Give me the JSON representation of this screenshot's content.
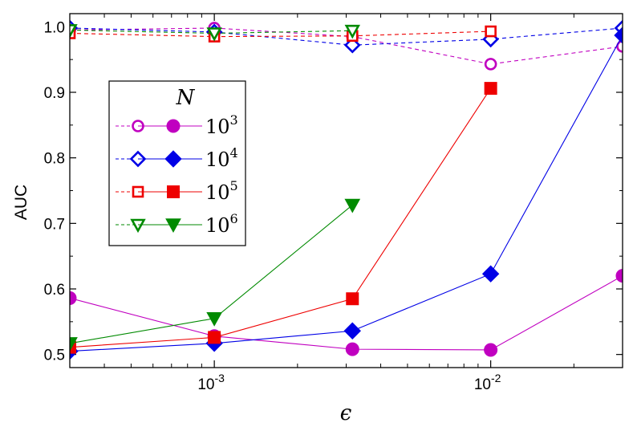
{
  "chart_data": {
    "type": "line",
    "xlabel": "ϵ",
    "ylabel": "AUC",
    "xscale": "log",
    "xlim": [
      0.0003,
      0.03
    ],
    "ylim": [
      0.48,
      1.02
    ],
    "x": [
      0.0003,
      0.001,
      0.00316,
      0.01,
      0.03
    ],
    "x_ticks": [
      {
        "value": 0.001,
        "base": "10",
        "exp": "-3"
      },
      {
        "value": 0.01,
        "base": "10",
        "exp": "-2"
      }
    ],
    "y_ticks": [
      {
        "value": 0.5,
        "label": "0.5"
      },
      {
        "value": 0.6,
        "label": "0.6"
      },
      {
        "value": 0.7,
        "label": "0.7"
      },
      {
        "value": 0.8,
        "label": "0.8"
      },
      {
        "value": 0.9,
        "label": "0.9"
      },
      {
        "value": 1.0,
        "label": "1.0"
      }
    ],
    "grid": false,
    "legend": {
      "title": "N",
      "placement": "upper-left",
      "entries": [
        {
          "base": "10",
          "exp": "3"
        },
        {
          "base": "10",
          "exp": "4"
        },
        {
          "base": "10",
          "exp": "5"
        },
        {
          "base": "10",
          "exp": "6"
        }
      ]
    },
    "series": [
      {
        "N": "10^3",
        "style": "dashed",
        "marker": "circle",
        "filled": false,
        "color": "#c000c0",
        "x": [
          0.0003,
          0.001,
          0.00316,
          0.01,
          0.03
        ],
        "y": [
          0.995,
          0.998,
          0.985,
          0.943,
          0.97
        ]
      },
      {
        "N": "10^3",
        "style": "solid",
        "marker": "circle",
        "filled": true,
        "color": "#c000c0",
        "x": [
          0.0003,
          0.001,
          0.00316,
          0.01,
          0.03
        ],
        "y": [
          0.586,
          0.528,
          0.508,
          0.507,
          0.62
        ]
      },
      {
        "N": "10^4",
        "style": "dashed",
        "marker": "diamond",
        "filled": false,
        "color": "#0000e6",
        "x": [
          0.0003,
          0.001,
          0.00316,
          0.01,
          0.03
        ],
        "y": [
          0.998,
          0.992,
          0.972,
          0.981,
          0.998
        ]
      },
      {
        "N": "10^4",
        "style": "solid",
        "marker": "diamond",
        "filled": true,
        "color": "#0000e6",
        "x": [
          0.0003,
          0.001,
          0.00316,
          0.01,
          0.03
        ],
        "y": [
          0.505,
          0.517,
          0.536,
          0.623,
          0.987
        ]
      },
      {
        "N": "10^5",
        "style": "dashed",
        "marker": "square",
        "filled": false,
        "color": "#ee0000",
        "x": [
          0.0003,
          0.001,
          0.00316,
          0.01
        ],
        "y": [
          0.99,
          0.985,
          0.986,
          0.993
        ]
      },
      {
        "N": "10^5",
        "style": "solid",
        "marker": "square",
        "filled": true,
        "color": "#ee0000",
        "x": [
          0.0003,
          0.001,
          0.00316,
          0.01
        ],
        "y": [
          0.511,
          0.526,
          0.585,
          0.906
        ]
      },
      {
        "N": "10^6",
        "style": "dashed",
        "marker": "triangle-down",
        "filled": false,
        "color": "#008a00",
        "x": [
          0.0003,
          0.001,
          0.00316
        ],
        "y": [
          0.995,
          0.99,
          0.994
        ]
      },
      {
        "N": "10^6",
        "style": "solid",
        "marker": "triangle-down",
        "filled": true,
        "color": "#008a00",
        "x": [
          0.0003,
          0.001,
          0.00316
        ],
        "y": [
          0.517,
          0.555,
          0.728
        ]
      }
    ]
  }
}
